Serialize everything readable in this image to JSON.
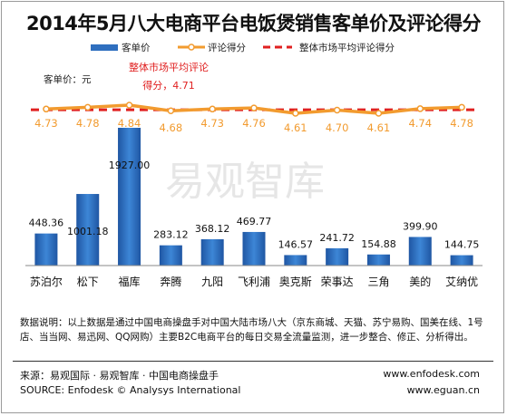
{
  "chart_data": {
    "type": "bar",
    "title": "2014年5月八大电商平台电饭煲销售客单价及评论得分",
    "ylabel": "客单价：元",
    "categories": [
      "苏泊尔",
      "松下",
      "福库",
      "奔腾",
      "九阳",
      "飞利浦",
      "奥克斯",
      "荣事达",
      "三角",
      "美的",
      "艾纳优"
    ],
    "series": [
      {
        "name": "客单价",
        "type": "bar",
        "color": "#2f6fbf",
        "values": [
          448.36,
          1001.18,
          1927.0,
          283.12,
          368.12,
          469.77,
          146.57,
          241.72,
          154.88,
          399.9,
          144.75
        ],
        "labels": [
          "448.36",
          "1001.18",
          "1927.00",
          "283.12",
          "368.12",
          "469.77",
          "146.57",
          "241.72",
          "154.88",
          "399.90",
          "144.75"
        ]
      },
      {
        "name": "评论得分",
        "type": "line",
        "color": "#f29b2f",
        "values": [
          4.73,
          4.78,
          4.84,
          4.68,
          4.73,
          4.76,
          4.61,
          4.7,
          4.61,
          4.74,
          4.78
        ],
        "labels": [
          "4.73",
          "4.78",
          "4.84",
          "4.68",
          "4.73",
          "4.76",
          "4.61",
          "4.70",
          "4.61",
          "4.74",
          "4.78"
        ]
      },
      {
        "name": "整体市场平均评论得分",
        "type": "dashed-line",
        "color": "#e02020",
        "value": 4.71
      }
    ],
    "annotation": {
      "line1": "整体市场平均评论",
      "line2": "得分，4.71"
    },
    "legend_position": "top",
    "watermark": "易观智库"
  },
  "footer": {
    "note": "数据说明：以上数据是通过中国电商操盘手对中国大陆市场八大（京东商城、天猫、苏宁易购、国美在线、1号店、当当网、易迅网、QQ网购）主要B2C电商平台的每日交易全流量监测，进一步整合、修正、分析得出。",
    "source_cn": "来源：易观国际 · 易观智库 · 中国电商操盘手",
    "source_en": "SOURCE: Enfodesk © Analysys International",
    "url1": "www.enfodesk.com",
    "url2": "www.eguan.cn"
  }
}
